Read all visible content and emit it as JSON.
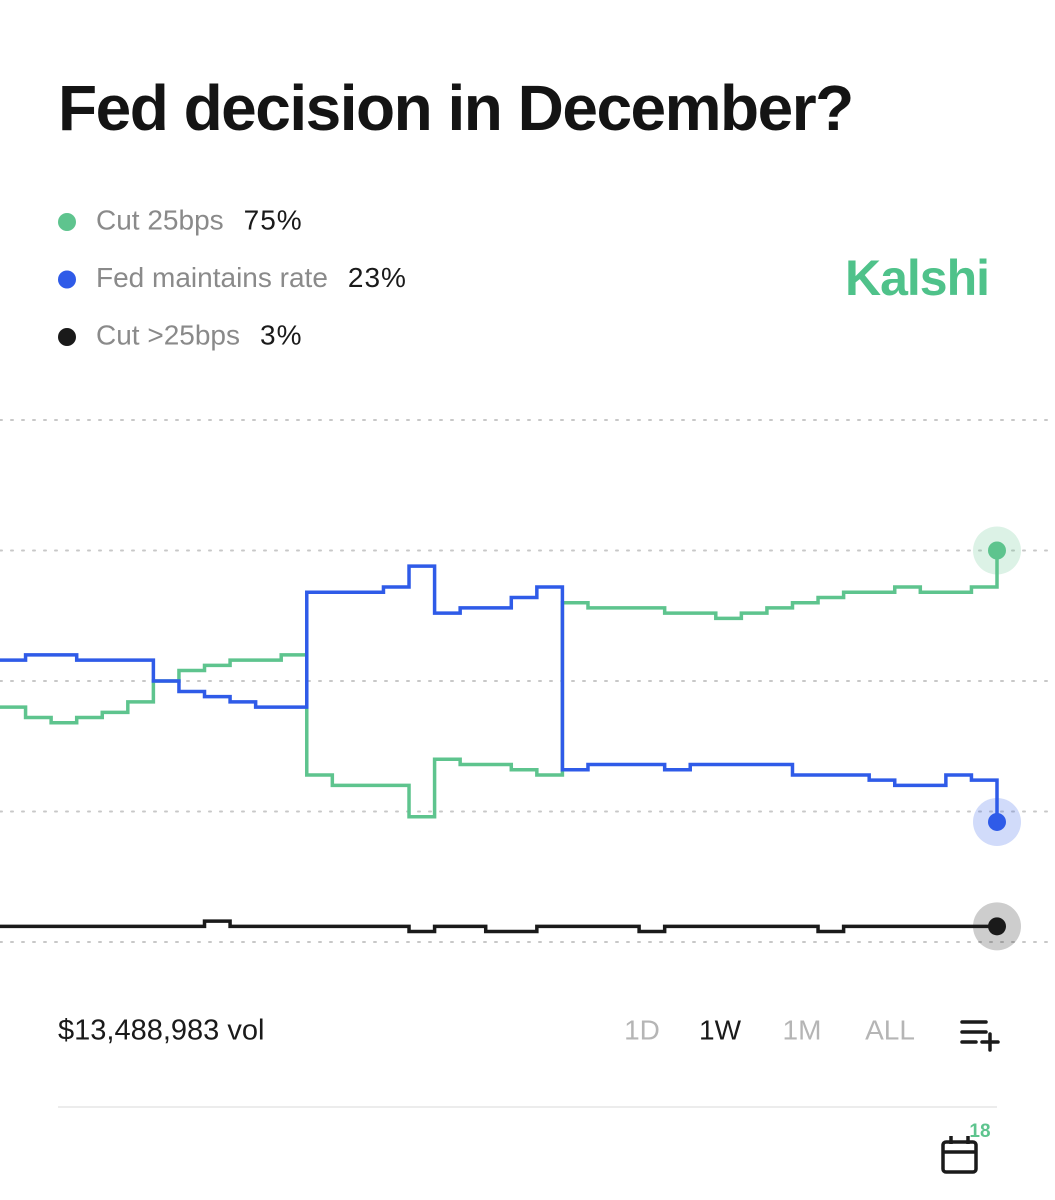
{
  "header": {
    "title": "Fed decision in December?",
    "brand": "Kalshi"
  },
  "chart_data": {
    "type": "line",
    "step": true,
    "series": [
      {
        "name": "Cut 25bps",
        "color": "#5ec48e",
        "current_label": "75%",
        "values": [
          45,
          43,
          42,
          43,
          44,
          46,
          50,
          52,
          53,
          54,
          54,
          55,
          32,
          30,
          30,
          30,
          24,
          35,
          34,
          34,
          33,
          32,
          65,
          64,
          64,
          64,
          63,
          63,
          62,
          63,
          64,
          65,
          66,
          67,
          67,
          68,
          67,
          67,
          68,
          75
        ]
      },
      {
        "name": "Fed maintains rate",
        "color": "#2f5be8",
        "current_label": "23%",
        "values": [
          54,
          55,
          55,
          54,
          54,
          54,
          50,
          48,
          47,
          46,
          45,
          45,
          67,
          67,
          67,
          68,
          72,
          63,
          64,
          64,
          66,
          68,
          33,
          34,
          34,
          34,
          33,
          34,
          34,
          34,
          34,
          32,
          32,
          32,
          31,
          30,
          30,
          32,
          31,
          23
        ]
      },
      {
        "name": "Cut >25bps",
        "color": "#1a1a1a",
        "current_label": "3%",
        "values": [
          3,
          3,
          3,
          3,
          3,
          3,
          3,
          3,
          4,
          3,
          3,
          3,
          3,
          3,
          3,
          3,
          2,
          3,
          3,
          2,
          2,
          3,
          3,
          3,
          3,
          2,
          3,
          3,
          3,
          3,
          3,
          3,
          2,
          3,
          3,
          3,
          3,
          3,
          3,
          3
        ]
      }
    ],
    "ylim": [
      0,
      100
    ],
    "yticks": [
      0,
      25,
      50,
      75,
      100
    ],
    "grid": true
  },
  "footer": {
    "volume": "$13,488,983 vol",
    "ranges": [
      "1D",
      "1W",
      "1M",
      "ALL"
    ],
    "selected_range": "1W",
    "calendar_badge": "18"
  }
}
